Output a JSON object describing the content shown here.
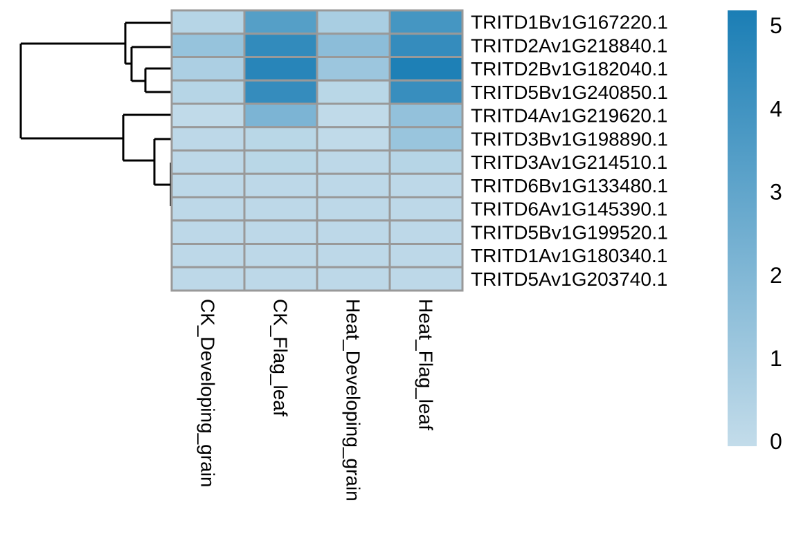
{
  "chart_data": {
    "type": "heatmap",
    "title": "",
    "columns": [
      "CK_Developing_grain",
      "CK_Flag_leaf",
      "Heat_Developing_grain",
      "Heat_Flag_leaf"
    ],
    "rows": [
      "TRITD1Bv1G167220.1",
      "TRITD2Av1G218840.1",
      "TRITD2Bv1G182040.1",
      "TRITD5Bv1G240850.1",
      "TRITD4Av1G219620.1",
      "TRITD3Bv1G198890.1",
      "TRITD3Av1G214510.1",
      "TRITD6Bv1G133480.1",
      "TRITD6Av1G145390.1",
      "TRITD5Bv1G199520.1",
      "TRITD1Av1G180340.1",
      "TRITD5Av1G203740.1"
    ],
    "values": [
      [
        0.4,
        3.4,
        0.8,
        3.9
      ],
      [
        1.4,
        4.5,
        1.7,
        4.4
      ],
      [
        0.7,
        4.8,
        1.2,
        5.1
      ],
      [
        0.4,
        4.4,
        0.3,
        4.3
      ],
      [
        0.1,
        2.2,
        0.1,
        1.5
      ],
      [
        0.2,
        0.3,
        0.1,
        1.3
      ],
      [
        0.2,
        0.3,
        0.2,
        0.4
      ],
      [
        0.2,
        0.2,
        0.2,
        0.2
      ],
      [
        0.2,
        0.2,
        0.2,
        0.2
      ],
      [
        0.2,
        0.2,
        0.2,
        0.2
      ],
      [
        0.2,
        0.2,
        0.2,
        0.2
      ],
      [
        0.2,
        0.2,
        0.2,
        0.2
      ]
    ],
    "color_scale": {
      "low_color": "#C3DCEA",
      "high_color": "#1B7EB5",
      "domain": [
        0,
        5.2
      ]
    },
    "colorbar": {
      "ticks": [
        "5",
        "4",
        "3",
        "2",
        "1",
        "0"
      ],
      "tick_values": [
        5,
        4,
        3,
        2,
        1,
        0
      ],
      "position": "right"
    },
    "grid_line_color": "#999999",
    "background_color": "#ffffff",
    "row_dendrogram": {
      "line_color": "#000000",
      "line_width": 3,
      "segments": [
        [
          30,
          63,
          30,
          200
        ],
        [
          30,
          63,
          181,
          63
        ],
        [
          181,
          33,
          181,
          92
        ],
        [
          181,
          33,
          248,
          33
        ],
        [
          181,
          92,
          190,
          92
        ],
        [
          190,
          68,
          190,
          117
        ],
        [
          190,
          68,
          248,
          68
        ],
        [
          190,
          117,
          210,
          117
        ],
        [
          210,
          99,
          210,
          133
        ],
        [
          210,
          99,
          248,
          99
        ],
        [
          210,
          133,
          248,
          133
        ],
        [
          30,
          200,
          178,
          200
        ],
        [
          178,
          166,
          178,
          232
        ],
        [
          178,
          166,
          248,
          166
        ],
        [
          178,
          232,
          223,
          232
        ],
        [
          223,
          201,
          223,
          267
        ],
        [
          223,
          201,
          248,
          201
        ],
        [
          223,
          267,
          247,
          267
        ],
        [
          247,
          235,
          247,
          298
        ],
        [
          247,
          235,
          248,
          235
        ],
        [
          247,
          298,
          248,
          298
        ]
      ]
    },
    "layout_hints": {
      "legend_position": "right",
      "row_labels_position": "right",
      "column_labels_rotation_deg": 90,
      "grid": "cell-borders"
    }
  }
}
